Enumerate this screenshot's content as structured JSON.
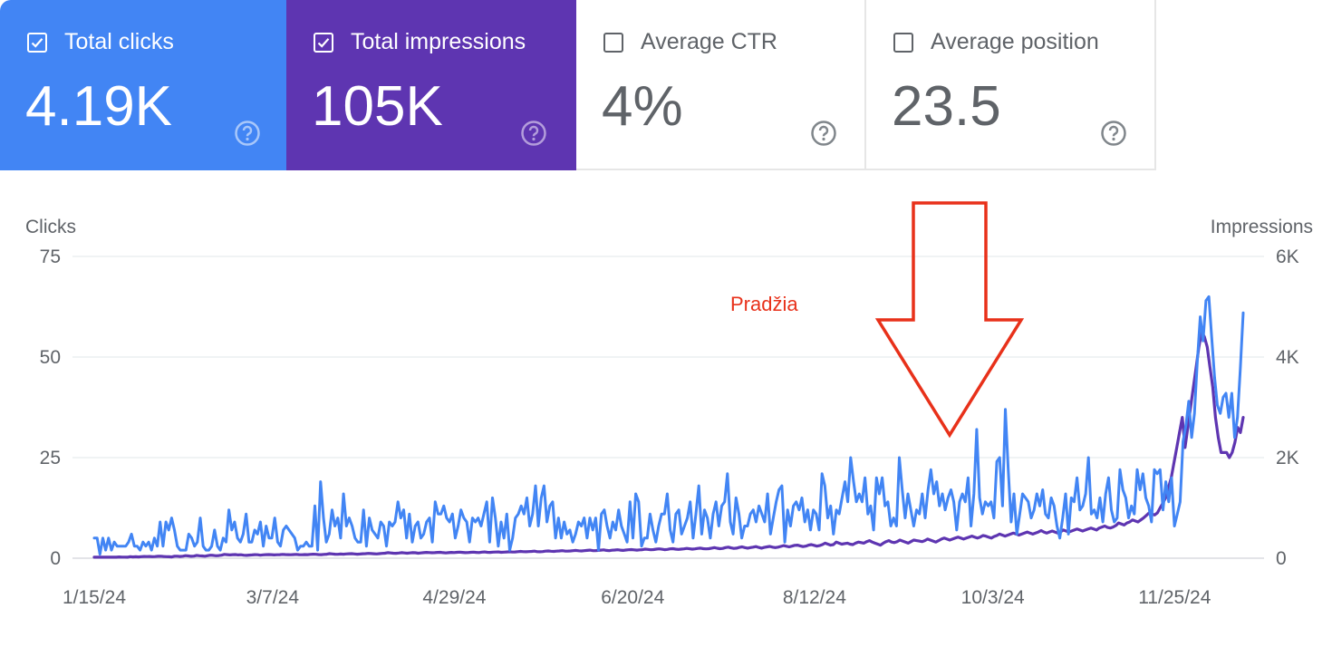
{
  "metrics": [
    {
      "label": "Total clicks",
      "value": "4.19K",
      "checked": true,
      "color": "#4285f4"
    },
    {
      "label": "Total impressions",
      "value": "105K",
      "checked": true,
      "color": "#5e35b1"
    },
    {
      "label": "Average CTR",
      "value": "4%",
      "checked": false,
      "color": "#ffffff"
    },
    {
      "label": "Average position",
      "value": "23.5",
      "checked": false,
      "color": "#ffffff"
    }
  ],
  "help_icon": "help-circle-icon",
  "annotation": {
    "text": "Pradžia",
    "color": "#e8311a",
    "arrow_icon": "down-arrow-icon",
    "points_to_date": "9/21/24"
  },
  "chart_data": {
    "type": "line",
    "x_start": "1/15/24",
    "x_end": "12/15/24",
    "x_tick_labels": [
      "1/15/24",
      "3/7/24",
      "4/29/24",
      "6/20/24",
      "8/12/24",
      "10/3/24",
      "11/25/24"
    ],
    "grid": true,
    "legend": "none",
    "left_axis": {
      "title": "Clicks",
      "ticks": [
        "0",
        "25",
        "50",
        "75"
      ],
      "range": [
        0,
        75
      ]
    },
    "right_axis": {
      "title": "Impressions",
      "ticks": [
        "0",
        "2K",
        "4K",
        "6K"
      ],
      "range": [
        0,
        6000
      ]
    },
    "series": [
      {
        "name": "Total clicks",
        "axis": "left",
        "color": "#4285f4",
        "values": [
          5,
          5,
          1,
          5,
          2,
          5,
          2,
          4,
          3,
          3,
          3,
          3,
          4,
          6,
          3,
          3,
          2,
          4,
          3,
          4,
          2,
          5,
          3,
          9,
          3,
          9,
          7,
          10,
          7,
          3,
          2,
          2,
          2,
          6,
          5,
          3,
          4,
          10,
          3,
          2,
          2,
          3,
          7,
          3,
          2,
          5,
          4,
          12,
          7,
          9,
          5,
          4,
          6,
          11,
          4,
          4,
          7,
          6,
          9,
          3,
          8,
          5,
          5,
          10,
          4,
          3,
          7,
          8,
          7,
          6,
          5,
          2,
          3,
          3,
          4,
          3,
          3,
          13,
          2,
          19,
          10,
          4,
          6,
          12,
          8,
          10,
          5,
          16,
          8,
          10,
          8,
          5,
          4,
          4,
          12,
          3,
          10,
          7,
          6,
          5,
          9,
          8,
          3,
          9,
          8,
          9,
          14,
          10,
          12,
          5,
          11,
          4,
          8,
          9,
          5,
          6,
          9,
          10,
          4,
          14,
          11,
          11,
          13,
          10,
          9,
          11,
          5,
          8,
          12,
          10,
          9,
          4,
          10,
          9,
          10,
          8,
          11,
          14,
          4,
          15,
          10,
          3,
          9,
          5,
          11,
          2,
          5,
          10,
          11,
          13,
          11,
          15,
          8,
          11,
          18,
          8,
          15,
          18,
          9,
          13,
          14,
          5,
          10,
          5,
          9,
          6,
          7,
          4,
          6,
          9,
          8,
          10,
          5,
          10,
          7,
          10,
          2,
          11,
          12,
          8,
          5,
          9,
          7,
          12,
          8,
          6,
          4,
          14,
          5,
          16,
          14,
          3,
          5,
          5,
          11,
          7,
          4,
          8,
          11,
          11,
          16,
          7,
          4,
          11,
          12,
          6,
          8,
          10,
          14,
          5,
          11,
          18,
          6,
          12,
          10,
          5,
          11,
          14,
          8,
          13,
          14,
          21,
          9,
          6,
          15,
          11,
          5,
          8,
          8,
          11,
          12,
          9,
          13,
          11,
          9,
          16,
          6,
          10,
          14,
          17,
          18,
          4,
          12,
          8,
          13,
          14,
          12,
          15,
          9,
          12,
          7,
          12,
          11,
          7,
          21,
          18,
          10,
          13,
          6,
          12,
          11,
          15,
          19,
          14,
          25,
          19,
          14,
          16,
          14,
          20,
          11,
          13,
          7,
          20,
          16,
          20,
          13,
          14,
          8,
          10,
          8,
          25,
          17,
          10,
          16,
          12,
          8,
          12,
          11,
          16,
          10,
          17,
          22,
          16,
          19,
          13,
          16,
          12,
          15,
          17,
          14,
          7,
          14,
          16,
          14,
          20,
          8,
          16,
          32,
          15,
          11,
          14,
          13,
          14,
          10,
          24,
          25,
          13,
          37,
          22,
          9,
          16,
          6,
          11,
          16,
          15,
          14,
          10,
          12,
          16,
          13,
          17,
          11,
          10,
          15,
          13,
          8,
          5,
          10,
          16,
          6,
          15,
          14,
          20,
          12,
          13,
          16,
          25,
          11,
          12,
          10,
          15,
          9,
          16,
          20,
          12,
          9,
          10,
          22,
          17,
          15,
          10,
          13,
          11,
          22,
          17,
          21,
          15,
          13,
          9,
          22,
          21,
          22,
          12,
          19,
          14,
          20,
          8,
          11,
          14,
          29,
          33,
          39,
          30,
          36,
          49,
          60,
          54,
          64,
          65,
          55,
          45,
          38,
          36,
          40,
          41,
          35,
          41,
          30,
          35,
          47,
          61
        ],
        "display_values_note": "clicks per day"
      },
      {
        "name": "Total impressions",
        "axis": "right",
        "color": "#5e35b1",
        "values": [
          20,
          20,
          22,
          20,
          20,
          21,
          20,
          22,
          20,
          25,
          22,
          21,
          20,
          30,
          25,
          28,
          25,
          30,
          35,
          32,
          35,
          30,
          32,
          38,
          40,
          35,
          30,
          28,
          26,
          40,
          40,
          35,
          40,
          50,
          45,
          38,
          42,
          55,
          48,
          45,
          40,
          50,
          60,
          55,
          48,
          52,
          60,
          75,
          70,
          65,
          70,
          72,
          65,
          68,
          60,
          55,
          62,
          65,
          70,
          68,
          60,
          66,
          70,
          72,
          70,
          65,
          68,
          70,
          75,
          72,
          70,
          68,
          72,
          75,
          70,
          68,
          72,
          70,
          75,
          80,
          78,
          72,
          70,
          75,
          80,
          90,
          85,
          80,
          78,
          82,
          80,
          85,
          88,
          90,
          85,
          80,
          82,
          88,
          90,
          95,
          92,
          88,
          85,
          90,
          95,
          100,
          110,
          105,
          100,
          98,
          102,
          110,
          105,
          100,
          105,
          110,
          108,
          100,
          105,
          110,
          115,
          112,
          108,
          110,
          115,
          118,
          110,
          105,
          110,
          115,
          112,
          118,
          120,
          115,
          110,
          112,
          118,
          120,
          115,
          112,
          120,
          125,
          118,
          115,
          120,
          122,
          125,
          118,
          120,
          125,
          128,
          122,
          125,
          130,
          135,
          130,
          128,
          132,
          135,
          140,
          130,
          128,
          132,
          140,
          145,
          138,
          135,
          140,
          145,
          150,
          142,
          140,
          145,
          150,
          155,
          148,
          145,
          150,
          155,
          160,
          152,
          150,
          155,
          160,
          165,
          155,
          150,
          158,
          162,
          168,
          160,
          155,
          162,
          168,
          172,
          165,
          160,
          165,
          170,
          180,
          175,
          168,
          172,
          180,
          185,
          178,
          170,
          175,
          185,
          190,
          180,
          175,
          180,
          185,
          195,
          188,
          180,
          185,
          195,
          200,
          190,
          185,
          190,
          200,
          210,
          198,
          190,
          195,
          210,
          220,
          205,
          195,
          200,
          215,
          225,
          210,
          200,
          210,
          220,
          230,
          215,
          200,
          215,
          225,
          235,
          220,
          210,
          220,
          235,
          250,
          238,
          225,
          240,
          255,
          260,
          245,
          230,
          240,
          260,
          270,
          255,
          240,
          250,
          270,
          300,
          280,
          260,
          270,
          320,
          300,
          280,
          290,
          300,
          280,
          270,
          300,
          320,
          310,
          300,
          330,
          350,
          320,
          300,
          280,
          260,
          300,
          330,
          350,
          320,
          310,
          330,
          360,
          340,
          320,
          300,
          330,
          360,
          350,
          340,
          330,
          350,
          380,
          360,
          340,
          320,
          350,
          380,
          400,
          380,
          360,
          380,
          400,
          420,
          400,
          380,
          400,
          420,
          440,
          420,
          400,
          420,
          450,
          440,
          420,
          400,
          430,
          450,
          480,
          460,
          440,
          460,
          480,
          500,
          480,
          460,
          480,
          500,
          520,
          500,
          480,
          500,
          520,
          550,
          520,
          500,
          520,
          540,
          520,
          500,
          520,
          560,
          540,
          520,
          540,
          560,
          580,
          560,
          540,
          560,
          580,
          600,
          580,
          560,
          600,
          620,
          640,
          610,
          600,
          620,
          650,
          700,
          680,
          660,
          700,
          720,
          760,
          740,
          720,
          760,
          800,
          850,
          900,
          880,
          860,
          900,
          1000,
          1100,
          1200,
          1400,
          1600,
          1900,
          2200,
          2500,
          2800,
          2200,
          2600,
          3000,
          3400,
          3800,
          4200,
          4500,
          4400,
          4200,
          3800,
          3400,
          2800,
          2400,
          2100,
          2100,
          2100,
          2000,
          2100,
          2300,
          2600,
          2500,
          2800
        ]
      }
    ]
  }
}
